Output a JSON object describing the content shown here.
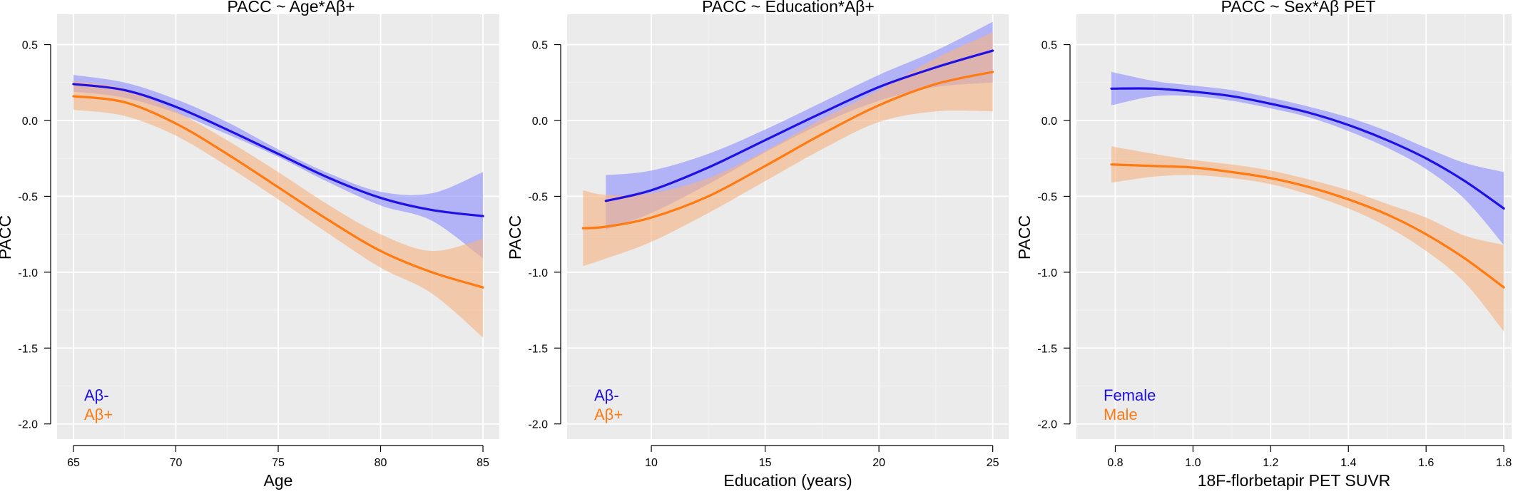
{
  "colors": {
    "panel_background": "#ebebeb",
    "grid_major": "#ffffff",
    "grid_minor": "#f4f4f4",
    "series_1": "#1f10e6",
    "series_2": "#ff7a10",
    "ribbon_1": "#8f8fff",
    "ribbon_2": "#f7b382"
  },
  "chart_data": [
    {
      "type": "line",
      "title": "PACC ~ Age*Aβ+",
      "xlabel": "Age",
      "ylabel": "PACC",
      "xlim": [
        64.2,
        85.8
      ],
      "ylim": [
        -2.1,
        0.7
      ],
      "x_ticks": [
        "65",
        "70",
        "75",
        "80",
        "85"
      ],
      "y_ticks": [
        "0.5",
        "0.0",
        "-0.5",
        "-1.0",
        "-1.5",
        "-2.0"
      ],
      "grid": true,
      "legend_position": "bottom-left",
      "series": [
        {
          "name": "Aβ-",
          "x": [
            65,
            67.5,
            70,
            72.5,
            75,
            77.5,
            80,
            82.5,
            85
          ],
          "y": [
            0.24,
            0.2,
            0.09,
            -0.06,
            -0.22,
            -0.38,
            -0.51,
            -0.59,
            -0.63
          ],
          "lower": [
            0.19,
            0.15,
            0.05,
            -0.09,
            -0.24,
            -0.41,
            -0.56,
            -0.66,
            -0.91
          ],
          "upper": [
            0.3,
            0.25,
            0.14,
            -0.01,
            -0.19,
            -0.35,
            -0.47,
            -0.48,
            -0.34
          ]
        },
        {
          "name": "Aβ+",
          "x": [
            65,
            67.5,
            70,
            72.5,
            75,
            77.5,
            80,
            82.5,
            85
          ],
          "y": [
            0.16,
            0.12,
            -0.02,
            -0.22,
            -0.44,
            -0.66,
            -0.86,
            -1.0,
            -1.1
          ],
          "lower": [
            0.07,
            0.03,
            -0.1,
            -0.3,
            -0.52,
            -0.75,
            -0.97,
            -1.14,
            -1.43
          ],
          "upper": [
            0.26,
            0.21,
            0.06,
            -0.13,
            -0.34,
            -0.56,
            -0.75,
            -0.86,
            -0.78
          ]
        }
      ]
    },
    {
      "type": "line",
      "title": "PACC ~ Education*Aβ+",
      "xlabel": "Education (years)",
      "ylabel": "PACC",
      "xlim": [
        6.3,
        25.7
      ],
      "ylim": [
        -2.1,
        0.7
      ],
      "x_ticks": [
        "10",
        "15",
        "20",
        "25"
      ],
      "y_ticks": [
        "0.5",
        "0.0",
        "-0.5",
        "-1.0",
        "-1.5",
        "-2.0"
      ],
      "grid": true,
      "legend_position": "bottom-left",
      "series": [
        {
          "name": "Aβ-",
          "x": [
            8,
            10,
            12.5,
            15,
            17.5,
            20,
            22.5,
            25
          ],
          "y": [
            -0.53,
            -0.46,
            -0.31,
            -0.13,
            0.05,
            0.22,
            0.35,
            0.46
          ],
          "lower": [
            -0.72,
            -0.61,
            -0.42,
            -0.21,
            -0.02,
            0.13,
            0.22,
            0.25
          ],
          "upper": [
            -0.36,
            -0.33,
            -0.22,
            -0.06,
            0.12,
            0.3,
            0.46,
            0.65
          ]
        },
        {
          "name": "Aβ+",
          "x": [
            7,
            8,
            10,
            12.5,
            15,
            17.5,
            20,
            22.5,
            25
          ],
          "y": [
            -0.71,
            -0.7,
            -0.64,
            -0.5,
            -0.3,
            -0.09,
            0.1,
            0.24,
            0.32
          ],
          "lower": [
            -0.96,
            -0.91,
            -0.8,
            -0.61,
            -0.4,
            -0.19,
            -0.01,
            0.06,
            0.06
          ],
          "upper": [
            -0.46,
            -0.49,
            -0.48,
            -0.38,
            -0.2,
            0.01,
            0.2,
            0.41,
            0.58
          ]
        }
      ]
    },
    {
      "type": "line",
      "title": "PACC ~ Sex*Aβ PET",
      "xlabel": "18F-florbetapir PET SUVR",
      "ylabel": "PACC",
      "xlim": [
        0.7,
        1.82
      ],
      "ylim": [
        -2.1,
        0.7
      ],
      "x_ticks": [
        "0.8",
        "1.0",
        "1.2",
        "1.4",
        "1.6",
        "1.8"
      ],
      "y_ticks": [
        "0.5",
        "0.0",
        "-0.5",
        "-1.0",
        "-1.5",
        "-2.0"
      ],
      "grid": true,
      "legend_position": "bottom-left",
      "series": [
        {
          "name": "Female",
          "x": [
            0.79,
            0.9,
            1.0,
            1.1,
            1.2,
            1.3,
            1.4,
            1.5,
            1.6,
            1.7,
            1.8
          ],
          "y": [
            0.21,
            0.21,
            0.19,
            0.16,
            0.11,
            0.05,
            -0.03,
            -0.13,
            -0.25,
            -0.4,
            -0.58
          ],
          "lower": [
            0.1,
            0.16,
            0.16,
            0.13,
            0.08,
            0.02,
            -0.07,
            -0.18,
            -0.32,
            -0.52,
            -0.82
          ],
          "upper": [
            0.32,
            0.26,
            0.23,
            0.2,
            0.15,
            0.09,
            0.02,
            -0.07,
            -0.18,
            -0.28,
            -0.34
          ]
        },
        {
          "name": "Male",
          "x": [
            0.79,
            0.9,
            1.0,
            1.1,
            1.2,
            1.3,
            1.4,
            1.5,
            1.6,
            1.7,
            1.8
          ],
          "y": [
            -0.29,
            -0.3,
            -0.31,
            -0.34,
            -0.38,
            -0.44,
            -0.52,
            -0.62,
            -0.75,
            -0.91,
            -1.1
          ],
          "lower": [
            -0.41,
            -0.37,
            -0.36,
            -0.38,
            -0.42,
            -0.49,
            -0.58,
            -0.7,
            -0.86,
            -1.07,
            -1.39
          ],
          "upper": [
            -0.17,
            -0.22,
            -0.26,
            -0.29,
            -0.33,
            -0.39,
            -0.46,
            -0.55,
            -0.64,
            -0.76,
            -0.82
          ]
        }
      ]
    }
  ]
}
